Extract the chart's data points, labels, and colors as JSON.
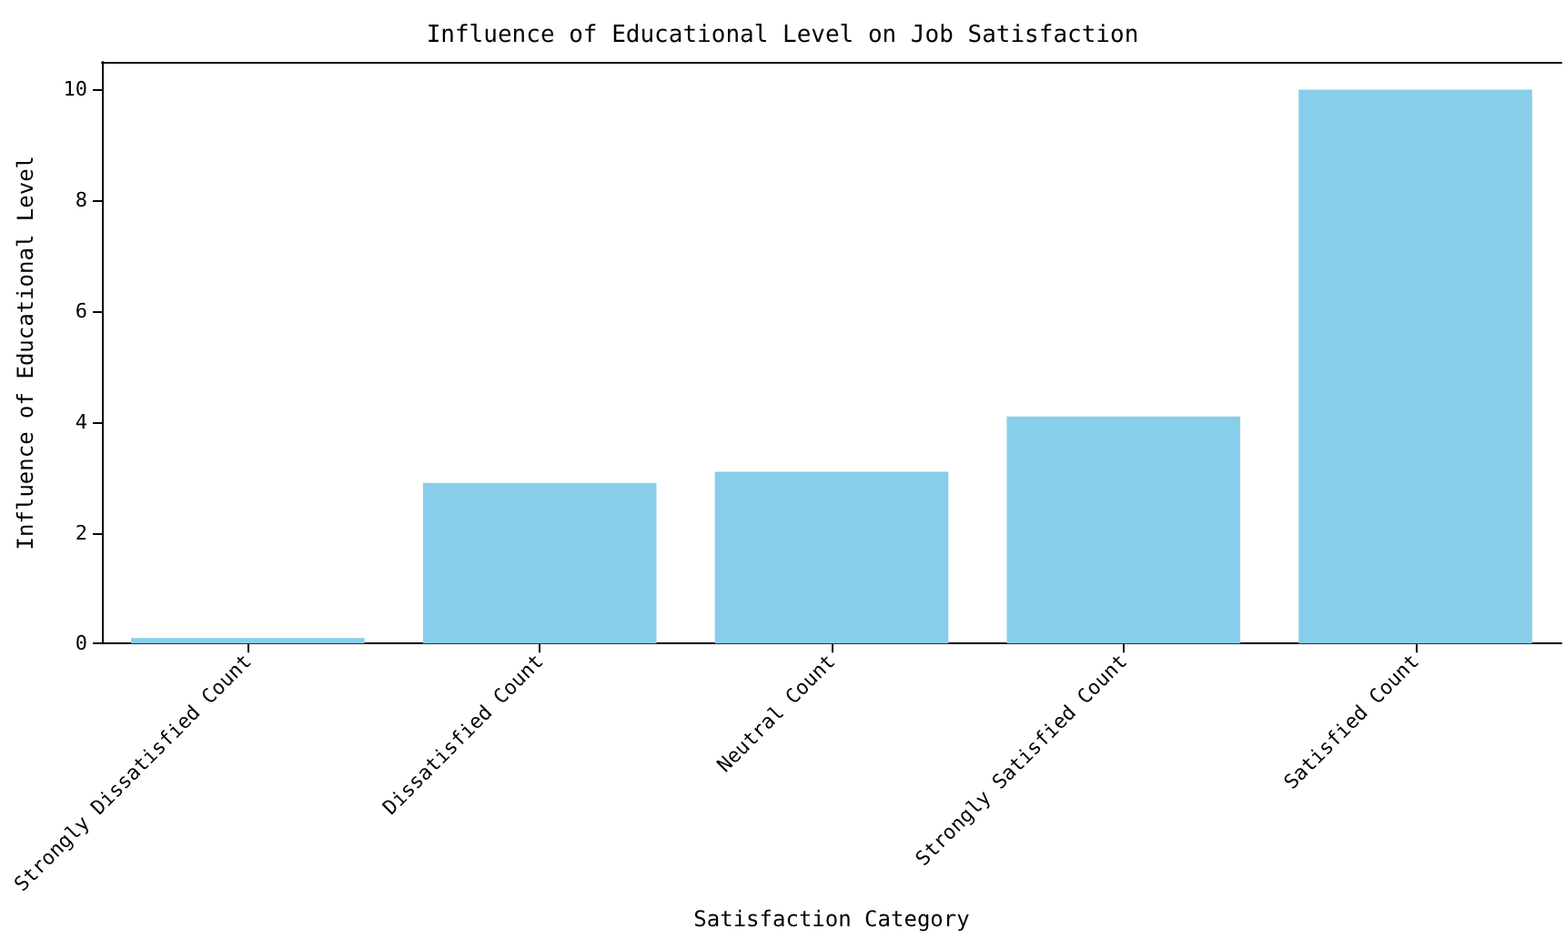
{
  "chart_data": {
    "type": "bar",
    "title": "Influence of Educational Level on Job Satisfaction",
    "xlabel": "Satisfaction Category",
    "ylabel": "Influence of Educational Level",
    "categories": [
      "Strongly Dissatisfied Count",
      "Dissatisfied Count",
      "Neutral Count",
      "Strongly Satisfied Count",
      "Satisfied Count"
    ],
    "values": [
      0.1,
      2.9,
      3.1,
      4.1,
      10.0
    ],
    "color": "#87ceeb",
    "ylim": [
      0,
      10.5
    ],
    "yticks": [
      0,
      2,
      4,
      6,
      8,
      10
    ],
    "grid": false
  }
}
